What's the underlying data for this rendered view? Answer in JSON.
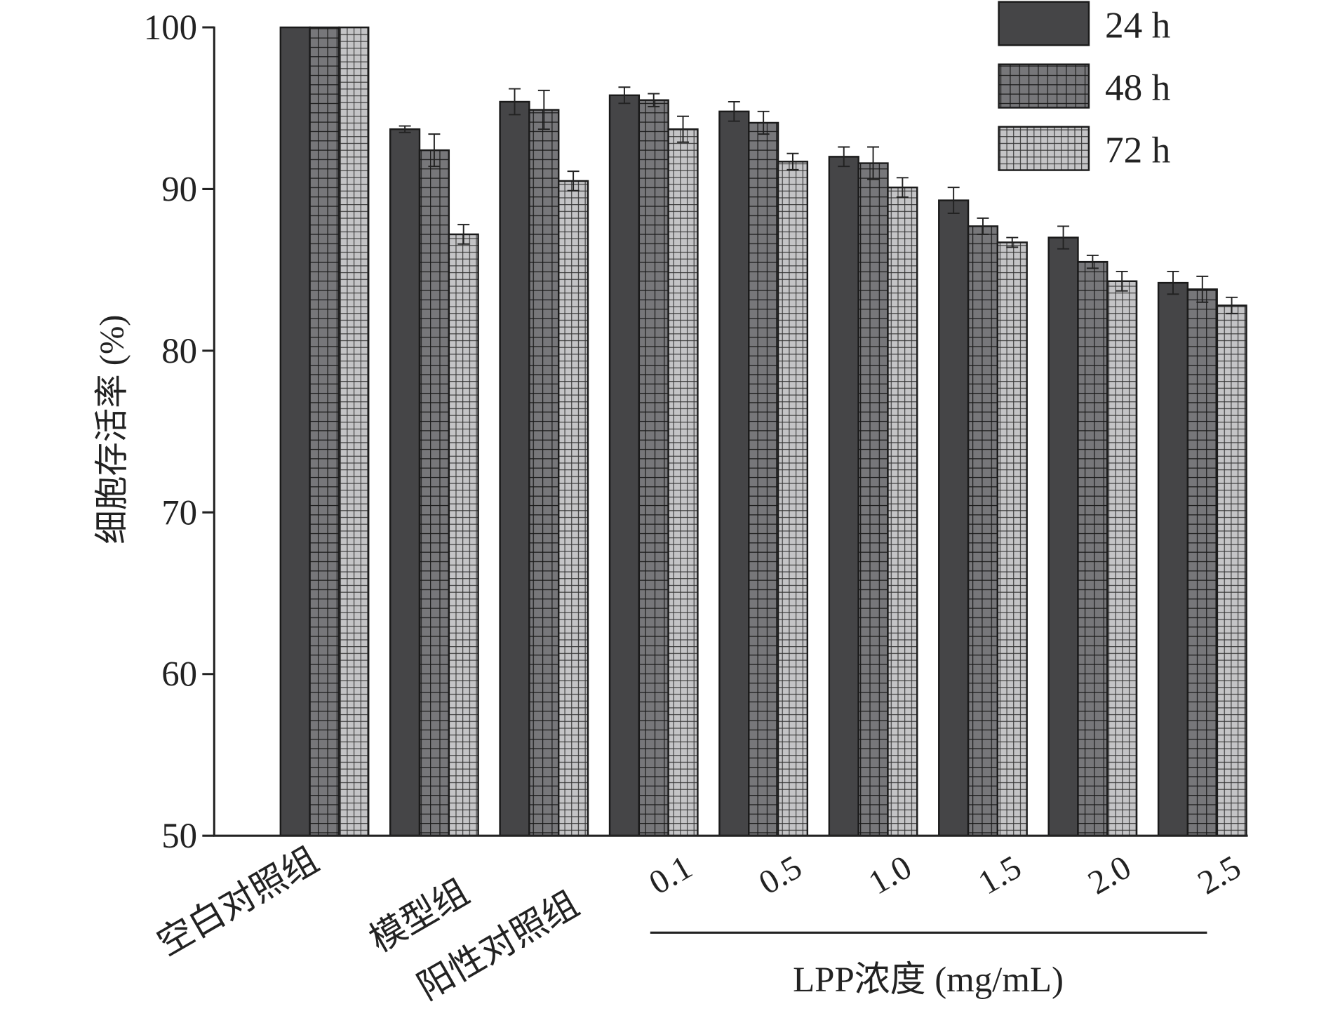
{
  "chart_data": {
    "type": "bar",
    "title": "",
    "ylabel": "细胞存活率 (%)",
    "xlabel": "LPP浓度 (mg/mL)",
    "ylim": [
      50,
      100
    ],
    "yticks": [
      "50",
      "60",
      "70",
      "80",
      "90",
      "100"
    ],
    "categories": [
      "空白对照组",
      "模型组",
      "阳性对照组",
      "0.1",
      "0.5",
      "1.0",
      "1.5",
      "2.0",
      "2.5"
    ],
    "lpp_group_categories": [
      "0.1",
      "0.5",
      "1.0",
      "1.5",
      "2.0",
      "2.5"
    ],
    "legend_position": "top-right",
    "series": [
      {
        "name": "24 h",
        "color": "#454547",
        "pattern": "solid",
        "values": [
          100,
          93.7,
          95.4,
          95.8,
          94.8,
          92.0,
          89.3,
          87.0,
          84.2
        ],
        "errors": [
          0,
          0.2,
          0.8,
          0.5,
          0.6,
          0.6,
          0.8,
          0.7,
          0.7
        ]
      },
      {
        "name": "48 h",
        "color": "#77777a",
        "pattern": "grid",
        "values": [
          100,
          92.4,
          94.9,
          95.5,
          94.1,
          91.6,
          87.7,
          85.5,
          83.8
        ],
        "errors": [
          0,
          1.0,
          1.2,
          0.4,
          0.7,
          1.0,
          0.5,
          0.4,
          0.8
        ]
      },
      {
        "name": "72 h",
        "color": "#bdbdbf",
        "pattern": "fine-grid",
        "values": [
          100,
          87.2,
          90.5,
          93.7,
          91.7,
          90.1,
          86.7,
          84.3,
          82.8
        ],
        "errors": [
          0,
          0.6,
          0.6,
          0.8,
          0.5,
          0.6,
          0.3,
          0.6,
          0.5
        ]
      }
    ]
  }
}
